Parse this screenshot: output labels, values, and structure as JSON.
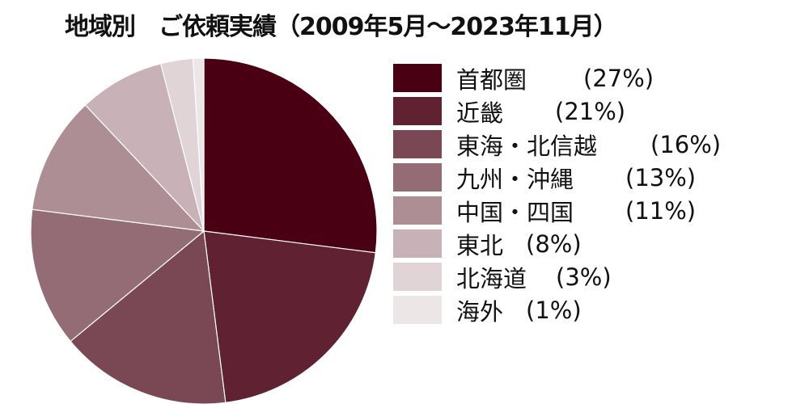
{
  "title": "地域別　ご依頼実績（2009年5月～2023年11月）",
  "chart_data": {
    "type": "pie",
    "title": "地域別　ご依頼実績（2009年5月～2023年11月）",
    "start_angle": "12 o'clock, clockwise",
    "legend_position": "right",
    "slices": [
      {
        "label": "首都圏",
        "value": 27,
        "display": "(27%)",
        "color": "#4a0012",
        "pct_offset": 70
      },
      {
        "label": "近畿",
        "value": 21,
        "display": "(21%)",
        "color": "#602232",
        "pct_offset": 64
      },
      {
        "label": "東海・北信越",
        "value": 16,
        "display": "(16%)",
        "color": "#7a4754",
        "pct_offset": 66
      },
      {
        "label": "九州・沖縄",
        "value": 13,
        "display": "(13%)",
        "color": "#936c75",
        "pct_offset": 64
      },
      {
        "label": "中国・四国",
        "value": 11,
        "display": "(11%)",
        "color": "#ad8e95",
        "pct_offset": 64
      },
      {
        "label": "東北",
        "value": 8,
        "display": "(8%)",
        "color": "#c8b2b7",
        "pct_offset": 28
      },
      {
        "label": "北海道",
        "value": 3,
        "display": "(3%)",
        "color": "#e0d4d7",
        "pct_offset": 36
      },
      {
        "label": "海外",
        "value": 1,
        "display": "(1%)",
        "color": "#ece6e7",
        "pct_offset": 28
      }
    ]
  }
}
